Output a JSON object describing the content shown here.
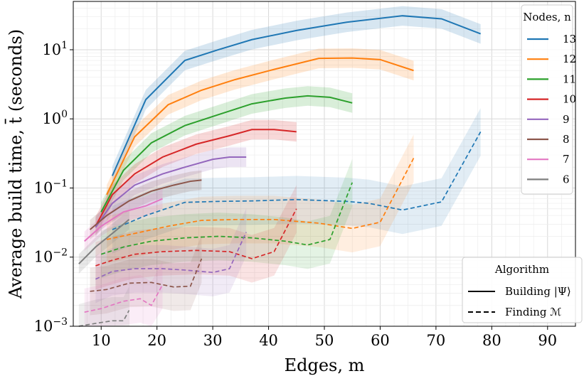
{
  "chart_data": {
    "type": "line",
    "xlabel": "Edges, m",
    "ylabel": "Average build time, t̄ (seconds)",
    "xlim": [
      5,
      95
    ],
    "ylim": [
      0.001,
      50
    ],
    "y_scale": "log",
    "x_ticks": [
      10,
      20,
      30,
      40,
      50,
      60,
      70,
      80,
      90
    ],
    "y_ticks": [
      {
        "value": 0.001,
        "base": "10",
        "exp": "−3"
      },
      {
        "value": 0.01,
        "base": "10",
        "exp": "−2"
      },
      {
        "value": 0.1,
        "base": "10",
        "exp": "−1"
      },
      {
        "value": 1,
        "base": "10",
        "exp": "0"
      },
      {
        "value": 10,
        "base": "10",
        "exp": "1"
      }
    ],
    "grid": true,
    "legend_nodes": {
      "title": "Nodes, n",
      "placement": "top-right",
      "entries": [
        "13",
        "12",
        "11",
        "10",
        "9",
        "8",
        "7",
        "6"
      ]
    },
    "legend_algorithm": {
      "title": "Algorithm",
      "placement": "bottom-right",
      "entries": [
        {
          "label": "Building |Ψ⟩",
          "style": "solid"
        },
        {
          "label": "Finding ℳ",
          "style": "dashed"
        }
      ]
    },
    "series": [
      {
        "n": "13",
        "color": "#1f77b4",
        "building": [
          [
            12,
            0.15
          ],
          [
            18,
            1.9
          ],
          [
            25,
            7
          ],
          [
            31,
            10
          ],
          [
            37,
            14
          ],
          [
            45,
            19
          ],
          [
            54,
            25
          ],
          [
            64,
            31
          ],
          [
            71,
            28
          ],
          [
            78,
            17
          ]
        ],
        "finding": [
          [
            12,
            0.025
          ],
          [
            18,
            0.04
          ],
          [
            25,
            0.062
          ],
          [
            31,
            0.064
          ],
          [
            37,
            0.065
          ],
          [
            45,
            0.068
          ],
          [
            54,
            0.064
          ],
          [
            58,
            0.06
          ],
          [
            64,
            0.048
          ],
          [
            71,
            0.063
          ],
          [
            78,
            0.65
          ]
        ]
      },
      {
        "n": "12",
        "color": "#ff7f0e",
        "building": [
          [
            11,
            0.08
          ],
          [
            16,
            0.55
          ],
          [
            22,
            1.6
          ],
          [
            28,
            2.6
          ],
          [
            34,
            3.7
          ],
          [
            41,
            5.2
          ],
          [
            49,
            7.5
          ],
          [
            55,
            7.6
          ],
          [
            60,
            7.2
          ],
          [
            66,
            5
          ]
        ],
        "finding": [
          [
            11,
            0.018
          ],
          [
            16,
            0.022
          ],
          [
            22,
            0.028
          ],
          [
            28,
            0.034
          ],
          [
            34,
            0.035
          ],
          [
            41,
            0.035
          ],
          [
            49,
            0.031
          ],
          [
            55,
            0.026
          ],
          [
            60,
            0.032
          ],
          [
            66,
            0.27
          ]
        ]
      },
      {
        "n": "11",
        "color": "#2ca02c",
        "building": [
          [
            10,
            0.045
          ],
          [
            14,
            0.18
          ],
          [
            19,
            0.45
          ],
          [
            25,
            0.8
          ],
          [
            31,
            1.15
          ],
          [
            37,
            1.65
          ],
          [
            43,
            2
          ],
          [
            47,
            2.15
          ],
          [
            51,
            2.05
          ],
          [
            55,
            1.7
          ]
        ],
        "finding": [
          [
            10,
            0.011
          ],
          [
            14,
            0.014
          ],
          [
            19,
            0.017
          ],
          [
            25,
            0.019
          ],
          [
            31,
            0.02
          ],
          [
            37,
            0.019
          ],
          [
            43,
            0.017
          ],
          [
            47,
            0.015
          ],
          [
            51,
            0.018
          ],
          [
            55,
            0.12
          ]
        ]
      },
      {
        "n": "10",
        "color": "#d62728",
        "building": [
          [
            9,
            0.028
          ],
          [
            12,
            0.08
          ],
          [
            16,
            0.16
          ],
          [
            21,
            0.28
          ],
          [
            27,
            0.43
          ],
          [
            33,
            0.57
          ],
          [
            37,
            0.7
          ],
          [
            41,
            0.7
          ],
          [
            45,
            0.65
          ]
        ],
        "finding": [
          [
            9,
            0.0075
          ],
          [
            12,
            0.009
          ],
          [
            16,
            0.011
          ],
          [
            21,
            0.012
          ],
          [
            27,
            0.0125
          ],
          [
            33,
            0.012
          ],
          [
            37,
            0.0095
          ],
          [
            41,
            0.012
          ],
          [
            45,
            0.05
          ]
        ]
      },
      {
        "n": "9",
        "color": "#9467bd",
        "building": [
          [
            9,
            0.027
          ],
          [
            12,
            0.06
          ],
          [
            16,
            0.11
          ],
          [
            21,
            0.16
          ],
          [
            25,
            0.2
          ],
          [
            30,
            0.26
          ],
          [
            33,
            0.28
          ],
          [
            36,
            0.28
          ]
        ],
        "finding": [
          [
            9,
            0.0048
          ],
          [
            12,
            0.0062
          ],
          [
            16,
            0.0068
          ],
          [
            21,
            0.0068
          ],
          [
            25,
            0.0065
          ],
          [
            30,
            0.006
          ],
          [
            33,
            0.0068
          ],
          [
            36,
            0.023
          ]
        ]
      },
      {
        "n": "8",
        "color": "#8c564b",
        "building": [
          [
            8,
            0.025
          ],
          [
            11,
            0.04
          ],
          [
            15,
            0.065
          ],
          [
            19,
            0.09
          ],
          [
            23,
            0.11
          ],
          [
            26,
            0.125
          ],
          [
            28,
            0.13
          ]
        ],
        "finding": [
          [
            8,
            0.0032
          ],
          [
            11,
            0.0034
          ],
          [
            15,
            0.0042
          ],
          [
            19,
            0.0043
          ],
          [
            23,
            0.0037
          ],
          [
            26,
            0.0038
          ],
          [
            28,
            0.0095
          ]
        ]
      },
      {
        "n": "7",
        "color": "#e377c2",
        "building": [
          [
            7,
            0.017
          ],
          [
            10,
            0.028
          ],
          [
            14,
            0.045
          ],
          [
            18,
            0.055
          ],
          [
            21,
            0.07
          ]
        ],
        "finding": [
          [
            7,
            0.0016
          ],
          [
            10,
            0.0018
          ],
          [
            14,
            0.0023
          ],
          [
            17,
            0.0025
          ],
          [
            19,
            0.002
          ],
          [
            21,
            0.004
          ]
        ]
      },
      {
        "n": "6",
        "color": "#7f7f7f",
        "building": [
          [
            6,
            0.008
          ],
          [
            9,
            0.014
          ],
          [
            12,
            0.022
          ],
          [
            15,
            0.035
          ]
        ],
        "finding": [
          [
            6,
            0.00095
          ],
          [
            9,
            0.0011
          ],
          [
            12,
            0.0012
          ],
          [
            14,
            0.0012
          ],
          [
            15,
            0.0017
          ]
        ]
      }
    ]
  }
}
